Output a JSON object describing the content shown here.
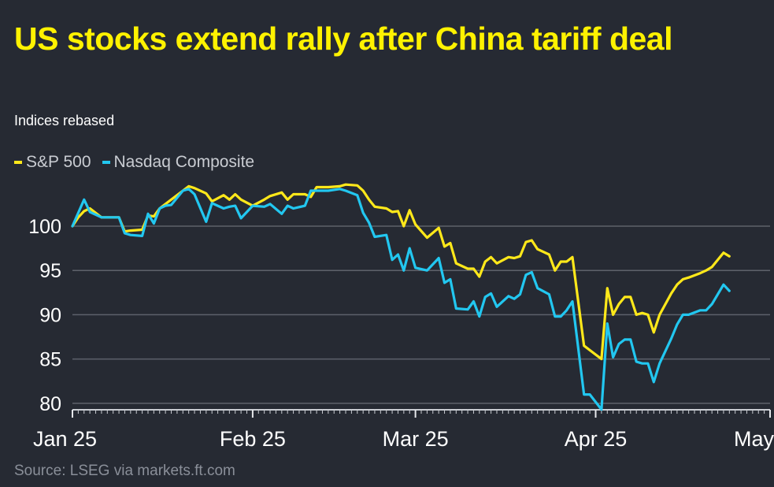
{
  "header": {
    "title": "US stocks extend rally after China tariff deal",
    "subtitle": "Indices rebased"
  },
  "footer": {
    "source": "Source: LSEG via markets.ft.com"
  },
  "colors": {
    "background": "#262a33",
    "title": "#fff200",
    "sp500": "#ffe81a",
    "nasdaq": "#22c7f0",
    "grid": "#5e626b"
  },
  "chart_data": {
    "type": "line",
    "x_axis": {
      "labels": [
        "Jan 25",
        "Feb 25",
        "Mar 25",
        "Apr 25",
        "May"
      ]
    },
    "y_axis": {
      "ticks": [
        100,
        95,
        90,
        85,
        80
      ],
      "range": [
        79,
        106
      ]
    },
    "grid": true,
    "legend_position": "top-left",
    "series": [
      {
        "name": "S&P 500",
        "color": "#ffe81a",
        "points": [
          [
            "2025-01-01",
            100
          ],
          [
            "2025-01-02",
            101
          ],
          [
            "2025-01-03",
            101.7
          ],
          [
            "2025-01-04",
            102
          ],
          [
            "2025-01-06",
            101
          ],
          [
            "2025-01-07",
            101
          ],
          [
            "2025-01-08",
            101
          ],
          [
            "2025-01-09",
            101
          ],
          [
            "2025-01-10",
            99.4
          ],
          [
            "2025-01-11",
            99.5
          ],
          [
            "2025-01-13",
            99.6
          ],
          [
            "2025-01-14",
            101.2
          ],
          [
            "2025-01-15",
            101.1
          ],
          [
            "2025-01-16",
            102
          ],
          [
            "2025-01-17",
            102.5
          ],
          [
            "2025-01-18",
            103
          ],
          [
            "2025-01-20",
            104
          ],
          [
            "2025-01-21",
            104.5
          ],
          [
            "2025-01-22",
            104.3
          ],
          [
            "2025-01-24",
            103.7
          ],
          [
            "2025-01-25",
            102.8
          ],
          [
            "2025-01-27",
            103.5
          ],
          [
            "2025-01-28",
            103
          ],
          [
            "2025-01-29",
            103.6
          ],
          [
            "2025-01-30",
            103
          ],
          [
            "2025-02-01",
            102.3
          ],
          [
            "2025-02-03",
            103
          ],
          [
            "2025-02-04",
            103.4
          ],
          [
            "2025-02-06",
            103.8
          ],
          [
            "2025-02-07",
            103
          ],
          [
            "2025-02-08",
            103.6
          ],
          [
            "2025-02-10",
            103.6
          ],
          [
            "2025-02-11",
            103.3
          ],
          [
            "2025-02-12",
            104.4
          ],
          [
            "2025-02-14",
            104.4
          ],
          [
            "2025-02-16",
            104.5
          ],
          [
            "2025-02-17",
            104.7
          ],
          [
            "2025-02-19",
            104.6
          ],
          [
            "2025-02-20",
            104
          ],
          [
            "2025-02-21",
            103
          ],
          [
            "2025-02-22",
            102.2
          ],
          [
            "2025-02-24",
            102
          ],
          [
            "2025-02-25",
            101.6
          ],
          [
            "2025-02-26",
            101.7
          ],
          [
            "2025-02-27",
            100
          ],
          [
            "2025-02-28",
            101.8
          ],
          [
            "2025-03-01",
            100.2
          ],
          [
            "2025-03-03",
            98.7
          ],
          [
            "2025-03-05",
            99.8
          ],
          [
            "2025-03-06",
            97.7
          ],
          [
            "2025-03-07",
            98.1
          ],
          [
            "2025-03-08",
            95.8
          ],
          [
            "2025-03-10",
            95.2
          ],
          [
            "2025-03-11",
            95.2
          ],
          [
            "2025-03-12",
            94.3
          ],
          [
            "2025-03-13",
            96
          ],
          [
            "2025-03-14",
            96.5
          ],
          [
            "2025-03-15",
            95.8
          ],
          [
            "2025-03-17",
            96.5
          ],
          [
            "2025-03-18",
            96.4
          ],
          [
            "2025-03-19",
            96.6
          ],
          [
            "2025-03-20",
            98.2
          ],
          [
            "2025-03-21",
            98.4
          ],
          [
            "2025-03-22",
            97.4
          ],
          [
            "2025-03-24",
            96.8
          ],
          [
            "2025-03-25",
            95
          ],
          [
            "2025-03-26",
            96
          ],
          [
            "2025-03-27",
            96
          ],
          [
            "2025-03-28",
            96.5
          ],
          [
            "2025-03-30",
            86.5
          ],
          [
            "2025-03-31",
            86
          ],
          [
            "2025-04-02",
            85
          ],
          [
            "2025-04-03",
            93
          ],
          [
            "2025-04-04",
            90
          ],
          [
            "2025-04-05",
            91.2
          ],
          [
            "2025-04-06",
            92
          ],
          [
            "2025-04-07",
            92
          ],
          [
            "2025-04-08",
            90
          ],
          [
            "2025-04-09",
            90.2
          ],
          [
            "2025-04-10",
            90
          ],
          [
            "2025-04-11",
            88
          ],
          [
            "2025-04-12",
            90
          ],
          [
            "2025-04-14",
            92.4
          ],
          [
            "2025-04-15",
            93.4
          ],
          [
            "2025-04-16",
            94
          ],
          [
            "2025-04-17",
            94.2
          ],
          [
            "2025-04-19",
            94.7
          ],
          [
            "2025-04-20",
            95
          ],
          [
            "2025-04-21",
            95.4
          ],
          [
            "2025-04-23",
            97
          ],
          [
            "2025-04-24",
            96.6
          ]
        ]
      },
      {
        "name": "Nasdaq Composite",
        "color": "#22c7f0",
        "points": [
          [
            "2025-01-01",
            100
          ],
          [
            "2025-01-02",
            101.5
          ],
          [
            "2025-01-03",
            103
          ],
          [
            "2025-01-04",
            101.6
          ],
          [
            "2025-01-06",
            101
          ],
          [
            "2025-01-07",
            101
          ],
          [
            "2025-01-08",
            101
          ],
          [
            "2025-01-09",
            101
          ],
          [
            "2025-01-10",
            99.2
          ],
          [
            "2025-01-11",
            99
          ],
          [
            "2025-01-13",
            98.9
          ],
          [
            "2025-01-14",
            101.4
          ],
          [
            "2025-01-15",
            100.3
          ],
          [
            "2025-01-16",
            102
          ],
          [
            "2025-01-17",
            102.3
          ],
          [
            "2025-01-18",
            102.4
          ],
          [
            "2025-01-20",
            104
          ],
          [
            "2025-01-21",
            104.2
          ],
          [
            "2025-01-22",
            103.6
          ],
          [
            "2025-01-24",
            100.5
          ],
          [
            "2025-01-25",
            102.6
          ],
          [
            "2025-01-27",
            102
          ],
          [
            "2025-01-28",
            102.2
          ],
          [
            "2025-01-29",
            102.3
          ],
          [
            "2025-01-30",
            100.9
          ],
          [
            "2025-02-01",
            102.3
          ],
          [
            "2025-02-03",
            102.2
          ],
          [
            "2025-02-04",
            102.5
          ],
          [
            "2025-02-06",
            101.4
          ],
          [
            "2025-02-07",
            102.3
          ],
          [
            "2025-02-08",
            102
          ],
          [
            "2025-02-10",
            102.3
          ],
          [
            "2025-02-11",
            104
          ],
          [
            "2025-02-12",
            104
          ],
          [
            "2025-02-14",
            104
          ],
          [
            "2025-02-16",
            104.2
          ],
          [
            "2025-02-17",
            104
          ],
          [
            "2025-02-19",
            103.5
          ],
          [
            "2025-02-20",
            101.5
          ],
          [
            "2025-02-21",
            100.4
          ],
          [
            "2025-02-22",
            98.8
          ],
          [
            "2025-02-24",
            99
          ],
          [
            "2025-02-25",
            96.2
          ],
          [
            "2025-02-26",
            96.8
          ],
          [
            "2025-02-27",
            95
          ],
          [
            "2025-02-28",
            97.5
          ],
          [
            "2025-03-01",
            95.3
          ],
          [
            "2025-03-03",
            95
          ],
          [
            "2025-03-05",
            96.4
          ],
          [
            "2025-03-06",
            93.6
          ],
          [
            "2025-03-07",
            94
          ],
          [
            "2025-03-08",
            90.7
          ],
          [
            "2025-03-10",
            90.6
          ],
          [
            "2025-03-11",
            91.5
          ],
          [
            "2025-03-12",
            89.8
          ],
          [
            "2025-03-13",
            92
          ],
          [
            "2025-03-14",
            92.4
          ],
          [
            "2025-03-15",
            90.9
          ],
          [
            "2025-03-17",
            92.1
          ],
          [
            "2025-03-18",
            91.8
          ],
          [
            "2025-03-19",
            92.3
          ],
          [
            "2025-03-20",
            94.5
          ],
          [
            "2025-03-21",
            94.8
          ],
          [
            "2025-03-22",
            93
          ],
          [
            "2025-03-24",
            92.3
          ],
          [
            "2025-03-25",
            89.8
          ],
          [
            "2025-03-26",
            89.8
          ],
          [
            "2025-03-27",
            90.5
          ],
          [
            "2025-03-28",
            91.5
          ],
          [
            "2025-03-30",
            81
          ],
          [
            "2025-03-31",
            81
          ],
          [
            "2025-04-02",
            79.3
          ],
          [
            "2025-04-03",
            89
          ],
          [
            "2025-04-04",
            85.2
          ],
          [
            "2025-04-05",
            86.7
          ],
          [
            "2025-04-06",
            87.2
          ],
          [
            "2025-04-07",
            87.2
          ],
          [
            "2025-04-08",
            84.7
          ],
          [
            "2025-04-09",
            84.5
          ],
          [
            "2025-04-10",
            84.5
          ],
          [
            "2025-04-11",
            82.4
          ],
          [
            "2025-04-12",
            84.5
          ],
          [
            "2025-04-14",
            87.3
          ],
          [
            "2025-04-15",
            88.9
          ],
          [
            "2025-04-16",
            90
          ],
          [
            "2025-04-17",
            90
          ],
          [
            "2025-04-19",
            90.5
          ],
          [
            "2025-04-20",
            90.5
          ],
          [
            "2025-04-21",
            91.2
          ],
          [
            "2025-04-23",
            93.4
          ],
          [
            "2025-04-24",
            92.7
          ]
        ]
      }
    ]
  }
}
